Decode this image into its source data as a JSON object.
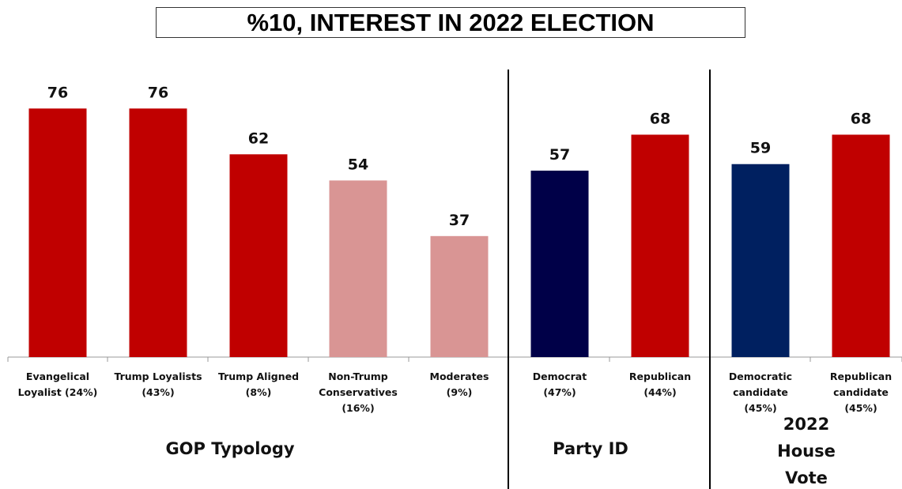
{
  "chart_data": {
    "type": "bar",
    "title": "%10, INTEREST IN 2022 ELECTION",
    "ylim": [
      0,
      100
    ],
    "grid": false,
    "bars": [
      {
        "label": [
          "Evangelical",
          "Loyalist (24%)"
        ],
        "value": 76,
        "color": "#c00000",
        "group": 0
      },
      {
        "label": [
          "Trump Loyalists",
          "(43%)"
        ],
        "value": 76,
        "color": "#c00000",
        "group": 0
      },
      {
        "label": [
          "Trump Aligned",
          "(8%)"
        ],
        "value": 62,
        "color": "#c00000",
        "group": 0
      },
      {
        "label": [
          "Non-Trump",
          "Conservatives",
          "(16%)"
        ],
        "value": 54,
        "color": "#d99594",
        "group": 0
      },
      {
        "label": [
          "Moderates",
          "(9%)"
        ],
        "value": 37,
        "color": "#d99594",
        "group": 0
      },
      {
        "label": [
          "Democrat",
          "(47%)"
        ],
        "value": 57,
        "color": "#000048",
        "group": 1
      },
      {
        "label": [
          "Republican",
          "(44%)"
        ],
        "value": 68,
        "color": "#c00000",
        "group": 1
      },
      {
        "label": [
          "Democratic",
          "candidate",
          "(45%)"
        ],
        "value": 59,
        "color": "#002060",
        "group": 2
      },
      {
        "label": [
          "Republican",
          "candidate",
          "(45%)"
        ],
        "value": 68,
        "color": "#c00000",
        "group": 2
      }
    ],
    "groups": [
      {
        "label": [
          "GOP Typology"
        ]
      },
      {
        "label": [
          "Party ID"
        ]
      },
      {
        "label": [
          "2022",
          "House",
          "Vote"
        ]
      }
    ]
  }
}
